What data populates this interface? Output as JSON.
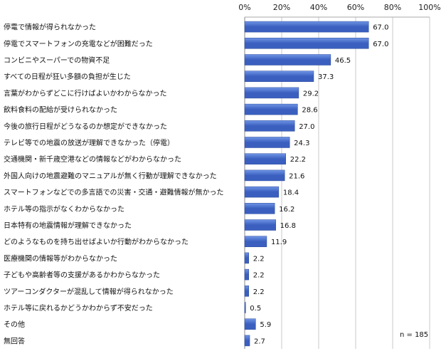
{
  "chart_data": {
    "type": "bar",
    "orientation": "horizontal",
    "xlim": [
      0,
      100
    ],
    "x_ticks": [
      "0%",
      "20%",
      "40%",
      "60%",
      "80%",
      "100%"
    ],
    "x_tick_values": [
      0,
      20,
      40,
      60,
      80,
      100
    ],
    "grid": true,
    "bar_color": "#3a5fbf",
    "bar_color_light": "#6f95e6",
    "categories": [
      "停電で情報が得られなかった",
      "停電でスマートフォンの充電などが困難だった",
      "コンビニやスーパーでの物資不足",
      "すべての日程が狂い多額の負担が生じた",
      "言葉がわからずどこに行けばよいかわからなかった",
      "飲料食料の配給が受けられなかった",
      "今後の旅行日程がどうなるのか想定ができなかった",
      "テレビ等での地震の放送が理解できなかった（停電）",
      "交通機関・新千歳空港などの情報などがわからなかった",
      "外国人向けの地震避難のマニュアルが無く行動が理解できなかった",
      "スマートフォンなどでの多言語での災害・交通・避難情報が無かった",
      "ホテル等の指示がなくわからなかった",
      "日本特有の地震情報が理解できなかった",
      "どのようなものを持ち出せばよいか行動がわからなかった",
      "医療機関の情報等がわからなかった",
      "子どもや高齢者等の支援があるかわからなかった",
      "ツアーコンダクターが混乱して情報が得られなかった",
      "ホテル等に戻れるかどうかわからず不安だった",
      "その他",
      "無回答"
    ],
    "values": [
      67.0,
      67.0,
      46.5,
      37.3,
      29.2,
      28.6,
      27.0,
      24.3,
      22.2,
      21.6,
      18.4,
      16.2,
      16.8,
      11.9,
      2.2,
      2.2,
      2.2,
      0.5,
      5.9,
      2.7
    ],
    "value_labels": [
      "67.0",
      "67.0",
      "46.5",
      "37.3",
      "29.2",
      "28.6",
      "27.0",
      "24.3",
      "22.2",
      "21.6",
      "18.4",
      "16.2",
      "16.8",
      "11.9",
      "2.2",
      "2.2",
      "2.2",
      "0.5",
      "5.9",
      "2.7"
    ],
    "sample_note": "n = 185"
  }
}
